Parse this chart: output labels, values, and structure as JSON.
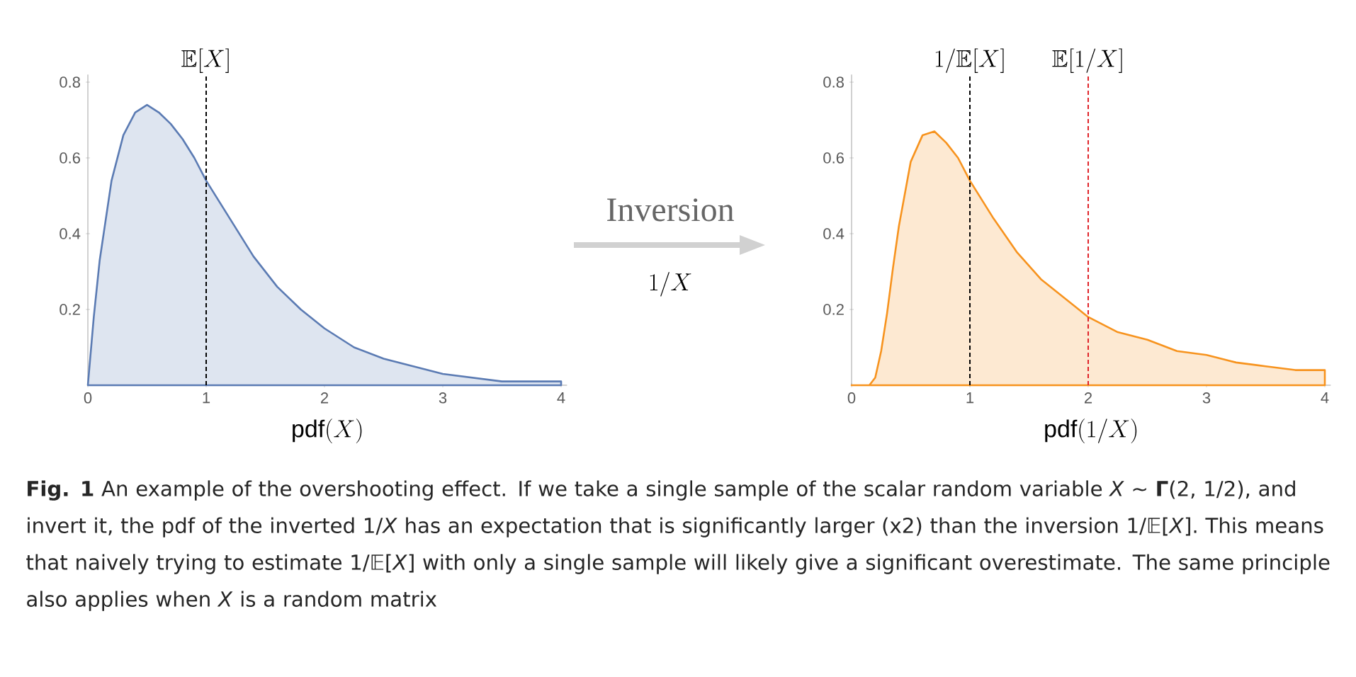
{
  "chart_data": [
    {
      "type": "area",
      "xlabel": "\\mathrm{pdf}(X)",
      "x": [
        0,
        0.05,
        0.1,
        0.2,
        0.3,
        0.4,
        0.5,
        0.6,
        0.7,
        0.8,
        0.9,
        1.0,
        1.2,
        1.4,
        1.6,
        1.8,
        2.0,
        2.25,
        2.5,
        2.75,
        3.0,
        3.25,
        3.5,
        3.75,
        4.0
      ],
      "series": [
        {
          "color": "#5b7bb3",
          "values": [
            0,
            0.18,
            0.33,
            0.54,
            0.66,
            0.72,
            0.74,
            0.72,
            0.69,
            0.65,
            0.6,
            0.54,
            0.44,
            0.34,
            0.26,
            0.2,
            0.15,
            0.1,
            0.07,
            0.05,
            0.03,
            0.02,
            0.01,
            0.01,
            0.01
          ]
        }
      ],
      "xlim": [
        0,
        4.05
      ],
      "ylim": [
        0,
        0.82
      ],
      "xticks": [
        0,
        1,
        2,
        3,
        4
      ],
      "yticks": [
        0.2,
        0.4,
        0.6,
        0.8
      ],
      "ref_lines": [
        {
          "axis": "x",
          "value": 1,
          "label": "\\mathbb{E}[X]",
          "color": "#000000",
          "line_style": "dashed"
        }
      ]
    },
    {
      "type": "other",
      "annotations": [
        "Inversion",
        "1/X"
      ]
    },
    {
      "type": "area",
      "xlabel": "\\mathrm{pdf}(1/X)",
      "x": [
        0,
        0.1,
        0.15,
        0.2,
        0.25,
        0.3,
        0.35,
        0.4,
        0.5,
        0.6,
        0.7,
        0.8,
        0.9,
        1.0,
        1.2,
        1.4,
        1.6,
        1.8,
        2.0,
        2.25,
        2.5,
        2.75,
        3.0,
        3.25,
        3.5,
        3.75,
        4.0
      ],
      "series": [
        {
          "color": "#f7931e",
          "values": [
            0,
            0,
            0,
            0.02,
            0.09,
            0.19,
            0.31,
            0.42,
            0.59,
            0.66,
            0.67,
            0.64,
            0.6,
            0.54,
            0.44,
            0.35,
            0.28,
            0.23,
            0.18,
            0.14,
            0.12,
            0.09,
            0.08,
            0.06,
            0.05,
            0.04,
            0.04
          ]
        }
      ],
      "xlim": [
        0,
        4.05
      ],
      "ylim": [
        0,
        0.82
      ],
      "xticks": [
        0,
        1,
        2,
        3,
        4
      ],
      "yticks": [
        0.2,
        0.4,
        0.6,
        0.8
      ],
      "ref_lines": [
        {
          "axis": "x",
          "value": 1,
          "label": "1/\\mathbb{E}[X]",
          "color": "#000000",
          "line_style": "dashed"
        },
        {
          "axis": "x",
          "value": 2,
          "label": "\\mathbb{E}[1/X]",
          "color": "#e0242a",
          "line_style": "dashed"
        }
      ]
    },
    {
      "type": "other",
      "annotations": [
        "**Fig. 1**    An example of the overshooting effect. If we take a single sample of the scalar random variable *X* ∼ **Γ**(2, 1/2), and invert it, the pdf of the inverted 1/*X* has an expectation that is significantly larger (x2) than the inversion 1/𝔼[*X*]. This means that naively trying to estimate 1/𝔼[*X*] with only a single sample will likely give a significant overestimate. The same principle also applies when *X* is a random matrix"
      ]
    }
  ]
}
